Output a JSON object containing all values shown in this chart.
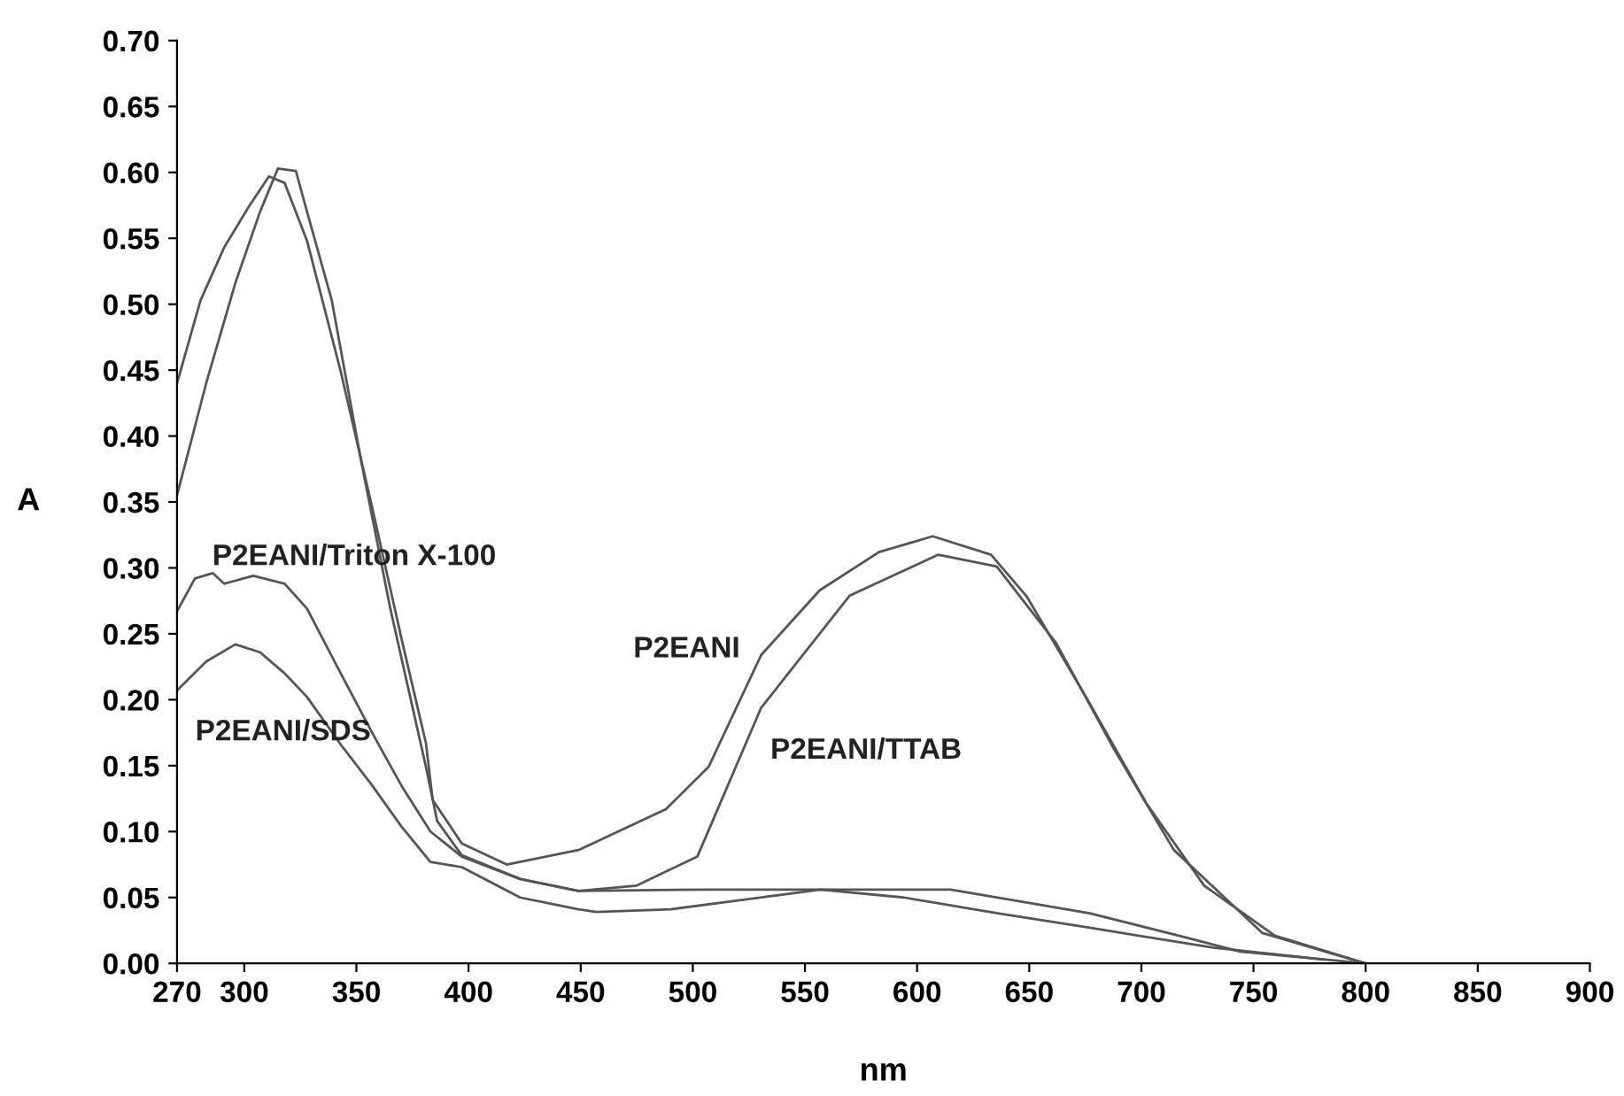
{
  "chart_data": {
    "type": "line",
    "xlabel": "nm",
    "ylabel": "A",
    "xlim": [
      270,
      900
    ],
    "xticks": [
      270,
      300,
      350,
      400,
      450,
      500,
      550,
      600,
      650,
      700,
      750,
      800,
      850,
      900
    ],
    "ylim": [
      0,
      0.7
    ],
    "yticks": [
      {
        "value": 0,
        "label": "0.00"
      },
      {
        "value": 0.05,
        "label": "0.05"
      },
      {
        "value": 0.1,
        "label": "0.10"
      },
      {
        "value": 0.15,
        "label": "0.15"
      },
      {
        "value": 0.2,
        "label": "0.20"
      },
      {
        "value": 0.25,
        "label": "0.25"
      },
      {
        "value": 0.3,
        "label": "0.30"
      },
      {
        "value": 0.35,
        "label": "0.35"
      },
      {
        "value": 0.4,
        "label": "0.40"
      },
      {
        "value": 0.45,
        "label": "0.45"
      },
      {
        "value": 0.5,
        "label": "0.50"
      },
      {
        "value": 0.55,
        "label": "0.55"
      },
      {
        "value": 0.6,
        "label": "0.60"
      },
      {
        "value": 0.65,
        "label": "0.65"
      },
      {
        "value": 0.7,
        "label": "0.70"
      }
    ],
    "grid": false,
    "legend": false,
    "marker": "none",
    "line_style": "solid",
    "series": [
      {
        "name": "P2EANI",
        "color": "#555555",
        "x": [
          270,
          280.5,
          291,
          302,
          311,
          318,
          328,
          343,
          357,
          370,
          381,
          384,
          397,
          417,
          449,
          488,
          507,
          530.5,
          556.6,
          583,
          607,
          633,
          649,
          675,
          702,
          728,
          759.5,
          800
        ],
        "values": [
          0.44,
          0.503,
          0.543,
          0.574,
          0.597,
          0.592,
          0.548,
          0.449,
          0.346,
          0.247,
          0.167,
          0.124,
          0.091,
          0.075,
          0.086,
          0.117,
          0.149,
          0.234,
          0.283,
          0.312,
          0.324,
          0.31,
          0.278,
          0.203,
          0.122,
          0.059,
          0.021,
          0.0
        ]
      },
      {
        "name": "P2EANI/TTAB",
        "color": "#555555",
        "x": [
          270,
          283,
          296,
          307,
          315,
          323,
          328,
          339,
          352,
          365,
          381,
          386,
          397,
          423,
          449,
          475,
          502,
          530.5,
          570,
          609.5,
          635.5,
          662,
          688,
          714.5,
          754,
          800
        ],
        "values": [
          0.355,
          0.44,
          0.516,
          0.57,
          0.603,
          0.601,
          0.57,
          0.503,
          0.382,
          0.27,
          0.149,
          0.108,
          0.082,
          0.064,
          0.055,
          0.059,
          0.081,
          0.194,
          0.279,
          0.31,
          0.301,
          0.243,
          0.162,
          0.086,
          0.023,
          0.0
        ]
      },
      {
        "name": "P2EANI/Triton X-100",
        "color": "#555555",
        "x": [
          270,
          278,
          286,
          291,
          304,
          318,
          328,
          343,
          357,
          370,
          383,
          397,
          423,
          449,
          507,
          615,
          677,
          719,
          744,
          800
        ],
        "values": [
          0.267,
          0.292,
          0.296,
          0.288,
          0.294,
          0.288,
          0.269,
          0.22,
          0.175,
          0.135,
          0.1,
          0.081,
          0.064,
          0.055,
          0.056,
          0.056,
          0.038,
          0.02,
          0.009,
          0.0
        ]
      },
      {
        "name": "P2EANI/SDS",
        "color": "#555555",
        "x": [
          270,
          283,
          296,
          307,
          318,
          328,
          343,
          357,
          370,
          383,
          397,
          423,
          449,
          457,
          490,
          557,
          594,
          636,
          677,
          732,
          781
        ],
        "values": [
          0.207,
          0.229,
          0.242,
          0.236,
          0.22,
          0.202,
          0.166,
          0.135,
          0.104,
          0.077,
          0.073,
          0.05,
          0.041,
          0.039,
          0.041,
          0.056,
          0.05,
          0.038,
          0.027,
          0.012,
          0.003
        ]
      }
    ]
  }
}
